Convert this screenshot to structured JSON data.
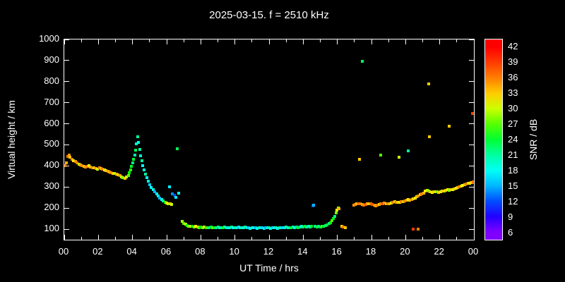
{
  "chart_data": {
    "type": "scatter",
    "title": "2025-03-15. f = 2510 kHz",
    "xlabel": "UT Time / hrs",
    "ylabel": "Virtual height / km",
    "colorbar_label": "SNR / dB",
    "background": "#000000",
    "frame_color": "#ffffff",
    "xlim": [
      0,
      24
    ],
    "ylim": [
      50,
      1000
    ],
    "xticks": {
      "values": [
        0,
        2,
        4,
        6,
        8,
        10,
        12,
        14,
        16,
        18,
        20,
        22,
        24
      ],
      "labels": [
        "00",
        "02",
        "04",
        "06",
        "08",
        "10",
        "12",
        "14",
        "16",
        "18",
        "20",
        "22",
        "00"
      ]
    },
    "yticks": [
      100,
      200,
      300,
      400,
      500,
      600,
      700,
      800,
      900,
      1000
    ],
    "colorbar": {
      "min": 4.5,
      "max": 43.5,
      "ticks": [
        6,
        9,
        12,
        15,
        18,
        21,
        24,
        27,
        30,
        33,
        36,
        39,
        42
      ],
      "hue_anchors": [
        [
          6,
          270
        ],
        [
          9,
          248
        ],
        [
          12,
          222
        ],
        [
          15,
          197
        ],
        [
          18,
          178
        ],
        [
          21,
          158
        ],
        [
          24,
          132
        ],
        [
          27,
          100
        ],
        [
          30,
          72
        ],
        [
          33,
          48
        ],
        [
          36,
          30
        ],
        [
          39,
          14
        ],
        [
          42,
          0
        ]
      ]
    },
    "points_format": [
      "ut_hours",
      "virtual_height_km",
      "snr_db"
    ],
    "points": [
      [
        0.05,
        400,
        36
      ],
      [
        0.12,
        415,
        34
      ],
      [
        0.2,
        445,
        37
      ],
      [
        0.28,
        450,
        35
      ],
      [
        0.35,
        440,
        33
      ],
      [
        0.45,
        432,
        36
      ],
      [
        0.55,
        425,
        31
      ],
      [
        0.65,
        420,
        35
      ],
      [
        0.75,
        415,
        36
      ],
      [
        0.85,
        408,
        30
      ],
      [
        0.95,
        404,
        34
      ],
      [
        1.05,
        400,
        36
      ],
      [
        1.15,
        397,
        33
      ],
      [
        1.25,
        395,
        35
      ],
      [
        1.35,
        398,
        36
      ],
      [
        1.45,
        400,
        31
      ],
      [
        1.55,
        394,
        34
      ],
      [
        1.65,
        390,
        36
      ],
      [
        1.75,
        392,
        33
      ],
      [
        1.85,
        388,
        35
      ],
      [
        1.95,
        385,
        30
      ],
      [
        2.05,
        390,
        36
      ],
      [
        2.15,
        387,
        34
      ],
      [
        2.25,
        384,
        36
      ],
      [
        2.35,
        380,
        31
      ],
      [
        2.45,
        377,
        33
      ],
      [
        2.55,
        374,
        35
      ],
      [
        2.65,
        371,
        34
      ],
      [
        2.75,
        369,
        36
      ],
      [
        2.85,
        366,
        33
      ],
      [
        2.95,
        363,
        30
      ],
      [
        3.05,
        360,
        34
      ],
      [
        3.15,
        357,
        33
      ],
      [
        3.25,
        353,
        35
      ],
      [
        3.35,
        348,
        30
      ],
      [
        3.45,
        344,
        28
      ],
      [
        3.55,
        341,
        33
      ],
      [
        3.65,
        347,
        30
      ],
      [
        3.75,
        356,
        27
      ],
      [
        3.82,
        368,
        25
      ],
      [
        3.88,
        382,
        26
      ],
      [
        3.94,
        398,
        24
      ],
      [
        4.0,
        415,
        22
      ],
      [
        4.06,
        430,
        24
      ],
      [
        4.12,
        450,
        21
      ],
      [
        4.18,
        475,
        23
      ],
      [
        4.24,
        505,
        20
      ],
      [
        4.3,
        540,
        21
      ],
      [
        4.36,
        512,
        18
      ],
      [
        4.42,
        478,
        21
      ],
      [
        4.48,
        448,
        19
      ],
      [
        4.54,
        425,
        21
      ],
      [
        4.6,
        402,
        18
      ],
      [
        4.68,
        382,
        19
      ],
      [
        4.76,
        362,
        21
      ],
      [
        4.84,
        344,
        18
      ],
      [
        4.92,
        326,
        19
      ],
      [
        5.0,
        312,
        16
      ],
      [
        5.1,
        298,
        18
      ],
      [
        5.2,
        286,
        18
      ],
      [
        5.3,
        276,
        15
      ],
      [
        5.4,
        266,
        18
      ],
      [
        5.5,
        256,
        17
      ],
      [
        5.6,
        246,
        15
      ],
      [
        5.7,
        239,
        18
      ],
      [
        5.8,
        233,
        21
      ],
      [
        5.9,
        228,
        26
      ],
      [
        6.0,
        225,
        32
      ],
      [
        6.1,
        221,
        30
      ],
      [
        6.2,
        219,
        33
      ],
      [
        6.3,
        217,
        30
      ],
      [
        6.15,
        300,
        17
      ],
      [
        6.35,
        266,
        14
      ],
      [
        6.45,
        262,
        12
      ],
      [
        6.55,
        252,
        17
      ],
      [
        6.62,
        480,
        23
      ],
      [
        6.72,
        272,
        18
      ],
      [
        6.9,
        136,
        29
      ],
      [
        7.0,
        128,
        27
      ],
      [
        7.1,
        122,
        30
      ],
      [
        7.2,
        118,
        25
      ],
      [
        7.3,
        115,
        28
      ],
      [
        7.4,
        113,
        31
      ],
      [
        7.5,
        112,
        25
      ],
      [
        7.6,
        110,
        28
      ],
      [
        7.7,
        112,
        31
      ],
      [
        7.8,
        110,
        33
      ],
      [
        7.9,
        108,
        27
      ],
      [
        8.0,
        110,
        25
      ],
      [
        8.1,
        108,
        28
      ],
      [
        8.2,
        110,
        30
      ],
      [
        8.3,
        108,
        24
      ],
      [
        8.4,
        106,
        27
      ],
      [
        8.5,
        108,
        22
      ],
      [
        8.6,
        110,
        24
      ],
      [
        8.7,
        108,
        27
      ],
      [
        8.8,
        106,
        24
      ],
      [
        8.9,
        108,
        21
      ],
      [
        9.0,
        110,
        24
      ],
      [
        9.1,
        108,
        19
      ],
      [
        9.2,
        106,
        21
      ],
      [
        9.3,
        108,
        24
      ],
      [
        9.4,
        110,
        21
      ],
      [
        9.5,
        108,
        18
      ],
      [
        9.6,
        106,
        21
      ],
      [
        9.7,
        108,
        18
      ],
      [
        9.8,
        110,
        22
      ],
      [
        9.9,
        108,
        18
      ],
      [
        10.0,
        106,
        21
      ],
      [
        10.1,
        108,
        18
      ],
      [
        10.2,
        110,
        16
      ],
      [
        10.3,
        108,
        18
      ],
      [
        10.4,
        106,
        21
      ],
      [
        10.5,
        108,
        18
      ],
      [
        10.6,
        110,
        21
      ],
      [
        10.7,
        108,
        18
      ],
      [
        10.8,
        106,
        15
      ],
      [
        10.9,
        105,
        18
      ],
      [
        11.0,
        106,
        21
      ],
      [
        11.1,
        108,
        18
      ],
      [
        11.2,
        106,
        15
      ],
      [
        11.3,
        105,
        18
      ],
      [
        11.4,
        106,
        21
      ],
      [
        11.5,
        108,
        18
      ],
      [
        11.6,
        106,
        16
      ],
      [
        11.7,
        105,
        18
      ],
      [
        11.8,
        106,
        15
      ],
      [
        11.9,
        108,
        18
      ],
      [
        12.0,
        106,
        21
      ],
      [
        12.1,
        105,
        18
      ],
      [
        12.2,
        106,
        16
      ],
      [
        12.3,
        108,
        18
      ],
      [
        12.4,
        106,
        21
      ],
      [
        12.5,
        105,
        18
      ],
      [
        12.6,
        106,
        21
      ],
      [
        12.7,
        108,
        19
      ],
      [
        12.8,
        106,
        16
      ],
      [
        12.9,
        108,
        18
      ],
      [
        13.0,
        110,
        21
      ],
      [
        13.1,
        108,
        18
      ],
      [
        13.2,
        106,
        21
      ],
      [
        13.3,
        108,
        24
      ],
      [
        13.4,
        110,
        21
      ],
      [
        13.5,
        108,
        19
      ],
      [
        13.6,
        110,
        22
      ],
      [
        13.7,
        108,
        24
      ],
      [
        13.8,
        110,
        21
      ],
      [
        13.9,
        112,
        19
      ],
      [
        14.0,
        110,
        22
      ],
      [
        14.1,
        112,
        24
      ],
      [
        14.2,
        110,
        21
      ],
      [
        14.3,
        112,
        19
      ],
      [
        14.4,
        110,
        21
      ],
      [
        14.5,
        112,
        24
      ],
      [
        14.55,
        210,
        12
      ],
      [
        14.62,
        213,
        15
      ],
      [
        14.7,
        112,
        21
      ],
      [
        14.8,
        110,
        24
      ],
      [
        14.9,
        112,
        22
      ],
      [
        15.0,
        110,
        24
      ],
      [
        15.1,
        112,
        27
      ],
      [
        15.2,
        115,
        24
      ],
      [
        15.3,
        118,
        22
      ],
      [
        15.4,
        121,
        24
      ],
      [
        15.5,
        126,
        22
      ],
      [
        15.6,
        131,
        25
      ],
      [
        15.7,
        140,
        27
      ],
      [
        15.78,
        150,
        25
      ],
      [
        15.86,
        162,
        22
      ],
      [
        15.92,
        176,
        28
      ],
      [
        15.98,
        190,
        31
      ],
      [
        16.04,
        200,
        28
      ],
      [
        16.1,
        196,
        34
      ],
      [
        16.25,
        114,
        33
      ],
      [
        16.35,
        110,
        36
      ],
      [
        16.45,
        108,
        33
      ],
      [
        16.95,
        214,
        35
      ],
      [
        17.05,
        217,
        36
      ],
      [
        17.15,
        220,
        34
      ],
      [
        17.25,
        222,
        37
      ],
      [
        17.3,
        430,
        33
      ],
      [
        17.35,
        220,
        36
      ],
      [
        17.45,
        895,
        23
      ],
      [
        17.45,
        218,
        34
      ],
      [
        17.55,
        215,
        36
      ],
      [
        17.65,
        217,
        38
      ],
      [
        17.75,
        220,
        35
      ],
      [
        17.85,
        222,
        33
      ],
      [
        17.95,
        220,
        36
      ],
      [
        18.05,
        218,
        38
      ],
      [
        18.15,
        215,
        36
      ],
      [
        18.25,
        212,
        34
      ],
      [
        18.35,
        214,
        36
      ],
      [
        18.45,
        217,
        33
      ],
      [
        18.55,
        450,
        27
      ],
      [
        18.55,
        220,
        36
      ],
      [
        18.65,
        222,
        38
      ],
      [
        18.75,
        224,
        35
      ],
      [
        18.85,
        222,
        33
      ],
      [
        18.95,
        220,
        36
      ],
      [
        19.05,
        222,
        34
      ],
      [
        19.15,
        225,
        31
      ],
      [
        19.25,
        228,
        36
      ],
      [
        19.35,
        230,
        33
      ],
      [
        19.45,
        228,
        36
      ],
      [
        19.55,
        226,
        33
      ],
      [
        19.6,
        443,
        30
      ],
      [
        19.65,
        228,
        31
      ],
      [
        19.75,
        230,
        36
      ],
      [
        19.85,
        232,
        33
      ],
      [
        19.95,
        234,
        36
      ],
      [
        20.05,
        237,
        34
      ],
      [
        20.15,
        470,
        21
      ],
      [
        20.15,
        239,
        31
      ],
      [
        20.25,
        238,
        33
      ],
      [
        20.35,
        240,
        36
      ],
      [
        20.45,
        100,
        39
      ],
      [
        20.45,
        244,
        33
      ],
      [
        20.55,
        249,
        31
      ],
      [
        20.65,
        254,
        33
      ],
      [
        20.75,
        100,
        36
      ],
      [
        20.75,
        259,
        35
      ],
      [
        20.85,
        263,
        33
      ],
      [
        20.95,
        267,
        36
      ],
      [
        21.05,
        272,
        34
      ],
      [
        21.15,
        280,
        32
      ],
      [
        21.25,
        284,
        30
      ],
      [
        21.35,
        790,
        33
      ],
      [
        21.35,
        280,
        28
      ],
      [
        21.4,
        540,
        33
      ],
      [
        21.45,
        277,
        33
      ],
      [
        21.55,
        274,
        31
      ],
      [
        21.65,
        277,
        33
      ],
      [
        21.75,
        279,
        30
      ],
      [
        21.85,
        277,
        28
      ],
      [
        21.95,
        274,
        33
      ],
      [
        22.05,
        277,
        31
      ],
      [
        22.15,
        280,
        33
      ],
      [
        22.25,
        282,
        30
      ],
      [
        22.35,
        284,
        33
      ],
      [
        22.45,
        287,
        31
      ],
      [
        22.55,
        590,
        33
      ],
      [
        22.55,
        284,
        28
      ],
      [
        22.65,
        287,
        33
      ],
      [
        22.75,
        289,
        31
      ],
      [
        22.85,
        291,
        33
      ],
      [
        22.95,
        294,
        31
      ],
      [
        23.05,
        297,
        33
      ],
      [
        23.15,
        300,
        36
      ],
      [
        23.25,
        304,
        33
      ],
      [
        23.35,
        307,
        31
      ],
      [
        23.45,
        310,
        33
      ],
      [
        23.55,
        314,
        36
      ],
      [
        23.65,
        317,
        33
      ],
      [
        23.75,
        319,
        31
      ],
      [
        23.85,
        322,
        33
      ],
      [
        23.9,
        650,
        39
      ],
      [
        23.95,
        325,
        36
      ],
      [
        24.0,
        322,
        38
      ]
    ]
  }
}
